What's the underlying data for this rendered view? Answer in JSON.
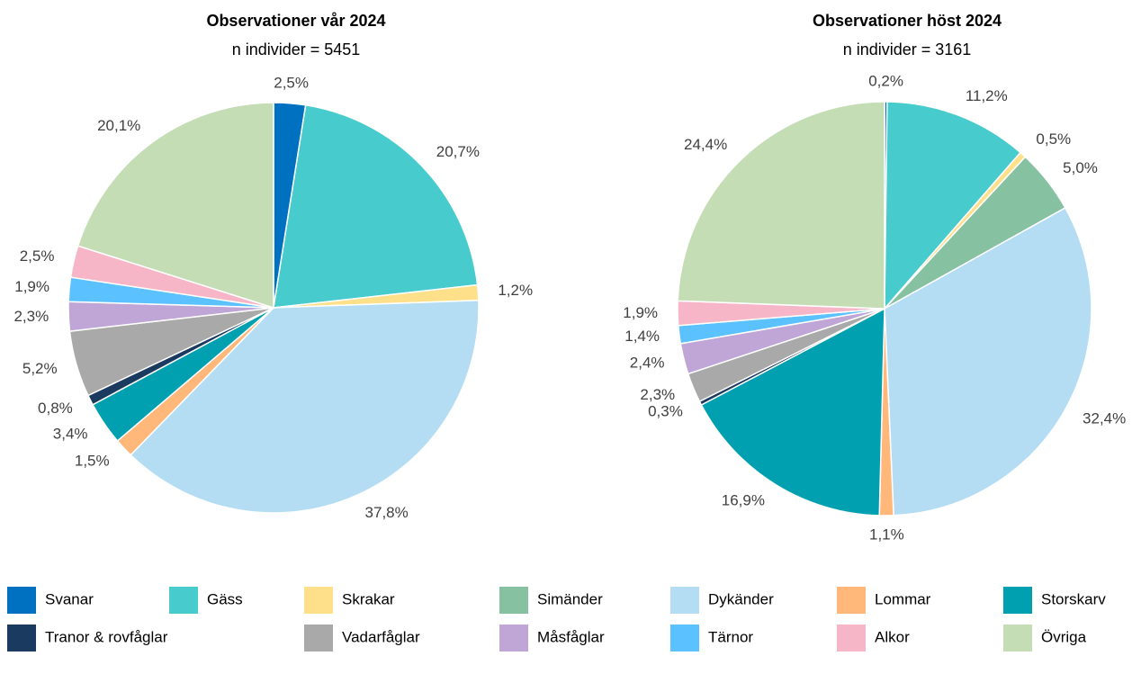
{
  "chart_data": [
    {
      "type": "pie",
      "title": "Observationer vår 2024",
      "subtitle": "n individer = 5451",
      "categories": [
        "Svanar",
        "Gäss",
        "Skrakar",
        "Simänder",
        "Dykänder",
        "Lommar",
        "Storskarv",
        "Tranor & rovfåglar",
        "Vadarfåglar",
        "Måsfåglar",
        "Tärnor",
        "Alkor",
        "Övriga"
      ],
      "values": [
        2.5,
        20.7,
        1.2,
        null,
        37.8,
        1.5,
        3.4,
        0.8,
        5.2,
        2.3,
        1.9,
        2.5,
        20.1
      ],
      "value_labels": [
        "2,5%",
        "20,7%",
        "1,2%",
        null,
        "37,8%",
        "1,5%",
        "3,4%",
        "0,8%",
        "5,2%",
        "2,3%",
        "1,9%",
        "2,5%",
        "20,1%"
      ],
      "colors": [
        "#0070c0",
        "#48cbcc",
        "#ffe08a",
        "#86c1a2",
        "#b4ddf3",
        "#ffb77a",
        "#00a0b0",
        "#1a3a60",
        "#a9a9a9",
        "#bfa6d6",
        "#5bc2ff",
        "#f7b6c8",
        "#c4ddb5"
      ]
    },
    {
      "type": "pie",
      "title": "Observationer höst 2024",
      "subtitle": "n individer = 3161",
      "categories": [
        "Svanar",
        "Gäss",
        "Skrakar",
        "Simänder",
        "Dykänder",
        "Lommar",
        "Storskarv",
        "Tranor & rovfåglar",
        "Vadarfåglar",
        "Måsfåglar",
        "Tärnor",
        "Alkor",
        "Övriga"
      ],
      "values": [
        0.2,
        11.2,
        0.5,
        5.0,
        32.4,
        1.1,
        16.9,
        0.3,
        2.3,
        2.4,
        1.4,
        1.9,
        24.4
      ],
      "value_labels": [
        "0,2%",
        "11,2%",
        "0,5%",
        "5,0%",
        "32,4%",
        "1,1%",
        "16,9%",
        "0,3%",
        "2,3%",
        "2,4%",
        "1,4%",
        "1,9%",
        "24,4%"
      ],
      "colors": [
        "#0070c0",
        "#48cbcc",
        "#ffe08a",
        "#86c1a2",
        "#b4ddf3",
        "#ffb77a",
        "#00a0b0",
        "#1a3a60",
        "#a9a9a9",
        "#bfa6d6",
        "#5bc2ff",
        "#f7b6c8",
        "#c4ddb5"
      ]
    }
  ]
}
